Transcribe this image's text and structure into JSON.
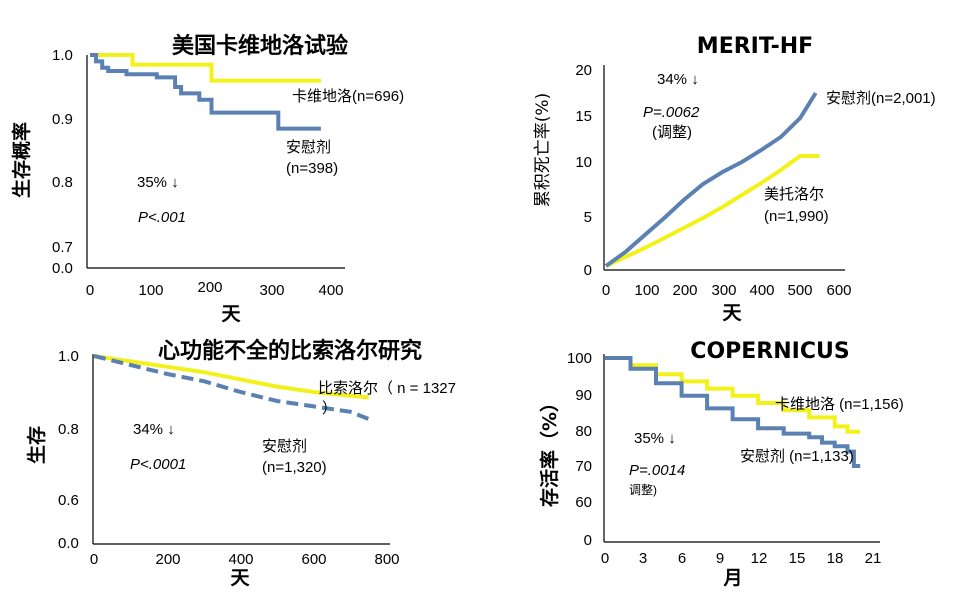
{
  "colors": {
    "yellow": "#F2F21A",
    "blue": "#5B80B2",
    "axis": "#000000"
  },
  "chart_data": [
    {
      "id": "us",
      "type": "line",
      "title": "美国卡维地洛试验",
      "xlabel": "天",
      "ylabel": "生存概率",
      "xticks": [
        "0",
        "100",
        "200",
        "300",
        "400"
      ],
      "yticks": [
        "1.0",
        "0.9",
        "0.8",
        "0.7",
        "0.0"
      ],
      "xlim": [
        0,
        400
      ],
      "annotations": {
        "reduction": "35% ↓",
        "p_value": "P<.001"
      },
      "series": [
        {
          "name": "卡维地洛",
          "n_label": "卡维地洛(n=696)",
          "color": "yellow",
          "x": [
            0,
            50,
            70,
            190,
            200,
            380
          ],
          "y": [
            1.0,
            1.0,
            0.985,
            0.985,
            0.96,
            0.96
          ]
        },
        {
          "name": "安慰剂",
          "n_label": "安慰剂",
          "n_label2": "(n=398)",
          "color": "blue",
          "x": [
            0,
            10,
            20,
            30,
            60,
            110,
            140,
            150,
            180,
            200,
            310,
            380
          ],
          "y": [
            1.0,
            0.99,
            0.98,
            0.975,
            0.97,
            0.965,
            0.95,
            0.94,
            0.93,
            0.91,
            0.885,
            0.885
          ]
        }
      ]
    },
    {
      "id": "merit",
      "type": "line",
      "title": "MERIT-HF",
      "xlabel": "天",
      "ylabel": "累积死亡率(%)",
      "xticks": [
        "0",
        "100",
        "200",
        "300",
        "400",
        "500",
        "600"
      ],
      "yticks": [
        "20",
        "15",
        "10",
        "5",
        "0"
      ],
      "xlim": [
        0,
        600
      ],
      "ylim": [
        0,
        20
      ],
      "annotations": {
        "reduction": "34% ↓",
        "p_value": "P=.0062",
        "adjusted": "(调整)"
      },
      "series": [
        {
          "name": "安慰剂",
          "n_label": "安慰剂(n=2,001)",
          "color": "blue",
          "x": [
            0,
            50,
            100,
            150,
            200,
            250,
            300,
            350,
            400,
            450,
            500,
            540
          ],
          "y": [
            0.2,
            1.6,
            3.3,
            5.0,
            6.8,
            8.4,
            9.6,
            10.6,
            11.8,
            13.1,
            15.0,
            17.5
          ]
        },
        {
          "name": "美托洛尔",
          "n_label": "美托洛尔",
          "n_label2": "(n=1,990)",
          "color": "yellow",
          "x": [
            0,
            50,
            100,
            150,
            200,
            250,
            300,
            350,
            400,
            450,
            500,
            550
          ],
          "y": [
            0.2,
            1.1,
            2.0,
            3.0,
            4.0,
            5.0,
            6.1,
            7.3,
            8.5,
            9.8,
            11.2,
            11.2
          ]
        }
      ]
    },
    {
      "id": "cibis",
      "type": "line",
      "title": "心功能不全的比索洛尔研究",
      "xlabel": "天",
      "ylabel": "生存",
      "xticks": [
        "0",
        "200",
        "400",
        "600",
        "800"
      ],
      "yticks": [
        "1.0",
        "0.8",
        "0.6",
        "0.0"
      ],
      "xlim": [
        0,
        800
      ],
      "annotations": {
        "reduction": "34% ↓",
        "p_value": "P<.0001"
      },
      "series": [
        {
          "name": "比索洛尔",
          "n_label": "比索洛尔（ n = 1327",
          "n_label2": "）",
          "color": "yellow",
          "x": [
            0,
            100,
            200,
            300,
            400,
            500,
            600,
            700,
            750
          ],
          "y": [
            1.0,
            0.985,
            0.97,
            0.955,
            0.935,
            0.915,
            0.9,
            0.89,
            0.885
          ]
        },
        {
          "name": "安慰剂",
          "n_label": "安慰剂",
          "n_label2": "(n=1,320)",
          "color": "blue",
          "x": [
            0,
            100,
            200,
            300,
            400,
            500,
            600,
            700,
            750
          ],
          "y": [
            1.0,
            0.975,
            0.95,
            0.93,
            0.9,
            0.875,
            0.86,
            0.845,
            0.825
          ]
        }
      ]
    },
    {
      "id": "copernicus",
      "type": "line",
      "title": "COPERNICUS",
      "xlabel": "月",
      "ylabel": "存活率（%）",
      "xticks": [
        "0",
        "3",
        "6",
        "9",
        "12",
        "15",
        "18",
        "21"
      ],
      "yticks": [
        "100",
        "90",
        "80",
        "70",
        "60",
        "0"
      ],
      "xlim": [
        0,
        21
      ],
      "annotations": {
        "reduction": "35% ↓",
        "p_value": "P=.0014",
        "adjusted": "调整)"
      },
      "series": [
        {
          "name": "卡维地洛",
          "n_label": "卡维地洛 (n=1,156)",
          "color": "yellow",
          "x": [
            0,
            2,
            4,
            6,
            8,
            10,
            12,
            14,
            16,
            18,
            19,
            20
          ],
          "y": [
            100,
            98,
            95.5,
            93.5,
            91.5,
            89.5,
            87.5,
            85.5,
            83.5,
            81,
            79.5,
            79.5
          ]
        },
        {
          "name": "安慰剂",
          "n_label": "安慰剂 (n=1,133)",
          "color": "blue",
          "x": [
            0,
            2,
            4,
            6,
            8,
            10,
            12,
            14,
            16,
            17,
            18,
            19,
            19.5,
            20
          ],
          "y": [
            100,
            97,
            93,
            89.5,
            86,
            83,
            80.5,
            79,
            78,
            76.5,
            75.5,
            74,
            70,
            70
          ]
        }
      ]
    }
  ]
}
